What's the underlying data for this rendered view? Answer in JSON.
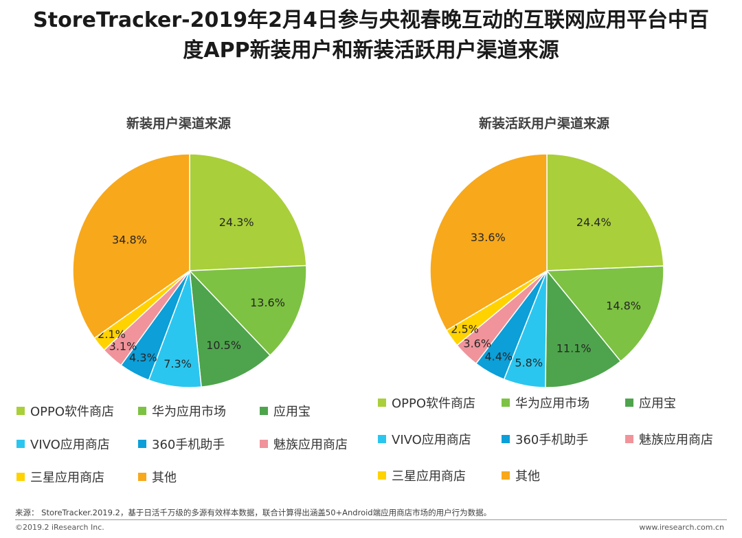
{
  "header": {
    "title_line1": "StoreTracker-2019年2月4日参与央视春晚互动的互联网应用平台中百",
    "title_line2": "度APP新装用户和新装活跃用户渠道来源"
  },
  "chart_data": [
    {
      "type": "pie",
      "title": "新装用户渠道来源",
      "categories": [
        "OPPO软件商店",
        "华为应用市场",
        "应用宝",
        "VIVO应用商店",
        "360手机助手",
        "魅族应用商店",
        "三星应用商店",
        "其他"
      ],
      "values": [
        24.3,
        13.6,
        10.5,
        7.3,
        4.3,
        3.1,
        2.1,
        34.8
      ],
      "labels": [
        "24.3%",
        "13.6%",
        "10.5%",
        "7.3%",
        "4.3%",
        "3.1%",
        "2.1%",
        "34.8%"
      ],
      "colors": [
        "#a9cf3a",
        "#7dc242",
        "#4ea44c",
        "#2bc6ef",
        "#0c9fd8",
        "#f0939a",
        "#ffd200",
        "#f7a81b"
      ]
    },
    {
      "type": "pie",
      "title": "新装活跃用户渠道来源",
      "categories": [
        "OPPO软件商店",
        "华为应用市场",
        "应用宝",
        "VIVO应用商店",
        "360手机助手",
        "魅族应用商店",
        "三星应用商店",
        "其他"
      ],
      "values": [
        24.4,
        14.8,
        11.1,
        5.8,
        4.4,
        3.6,
        2.5,
        33.6
      ],
      "labels": [
        "24.4%",
        "14.8%",
        "11.1%",
        "5.8%",
        "4.4%",
        "3.6%",
        "2.5%",
        "33.6%"
      ],
      "colors": [
        "#a9cf3a",
        "#7dc242",
        "#4ea44c",
        "#2bc6ef",
        "#0c9fd8",
        "#f0939a",
        "#ffd200",
        "#f7a81b"
      ]
    }
  ],
  "legend": {
    "items": [
      {
        "label": "OPPO软件商店",
        "color": "#a9cf3a"
      },
      {
        "label": "华为应用市场",
        "color": "#7dc242"
      },
      {
        "label": "应用宝",
        "color": "#4ea44c"
      },
      {
        "label": "VIVO应用商店",
        "color": "#2bc6ef"
      },
      {
        "label": "360手机助手",
        "color": "#0c9fd8"
      },
      {
        "label": "魅族应用商店",
        "color": "#f0939a"
      },
      {
        "label": "三星应用商店",
        "color": "#ffd200"
      },
      {
        "label": "其他",
        "color": "#f7a81b"
      }
    ]
  },
  "footer": {
    "source": "来源： StoreTracker.2019.2，基于日活千万级的多源有效样本数据，联合计算得出涵盖50+Android端应用商店市场的用户行为数据。",
    "copyright": "©2019.2 iResearch Inc.",
    "website": "www.iresearch.com.cn"
  }
}
